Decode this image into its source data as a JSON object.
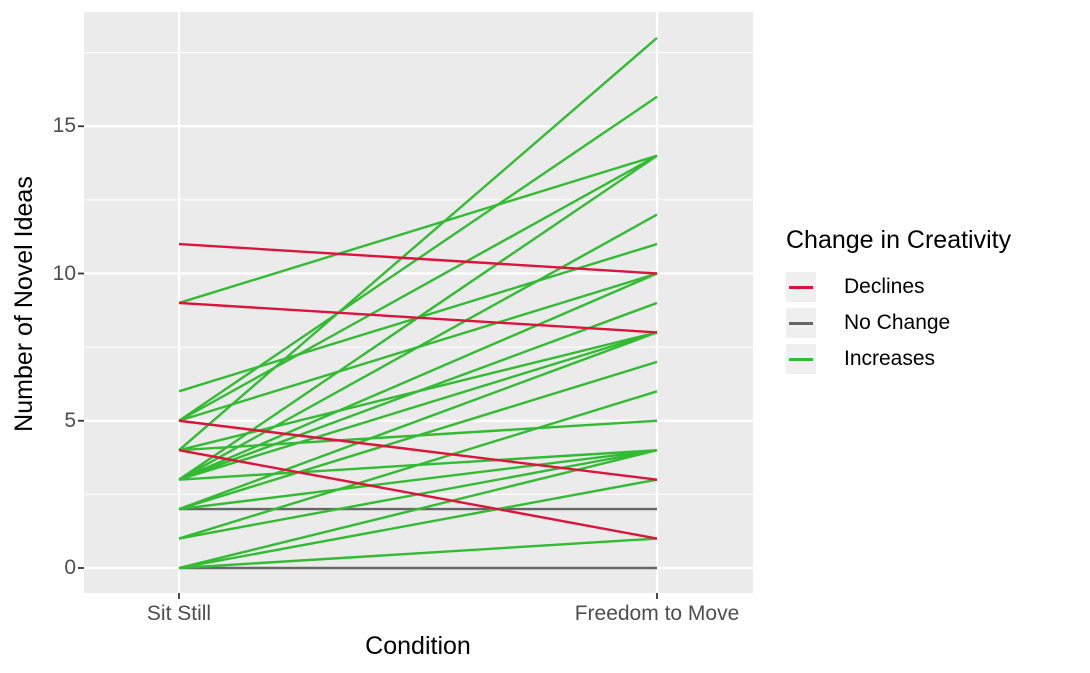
{
  "chart_data": {
    "type": "line",
    "subtype": "paired-slope-chart",
    "title": "",
    "xlabel": "Condition",
    "ylabel": "Number of Novel Ideas",
    "x_categories": [
      "Sit Still",
      "Freedom to Move"
    ],
    "y_ticks": [
      0,
      5,
      10,
      15
    ],
    "y_tick_labels": [
      "0",
      "5",
      "10",
      "15"
    ],
    "y_minor_gridlines": [
      2.5,
      7.5,
      12.5,
      17.5
    ],
    "ylim": [
      -0.85,
      18.9
    ],
    "grid": true,
    "legend": {
      "title": "Change in Creativity",
      "position": "right",
      "entries": [
        {
          "label": "Declines",
          "color": "#DC143C"
        },
        {
          "label": "No Change",
          "color": "#666666"
        },
        {
          "label": "Increases",
          "color": "#33BB33"
        }
      ]
    },
    "series": [
      {
        "name": "No Change",
        "color": "#666666",
        "pairs": [
          [
            2,
            2
          ],
          [
            0,
            0
          ]
        ]
      },
      {
        "name": "Increases",
        "color": "#33BB33",
        "pairs": [
          [
            9,
            14
          ],
          [
            6,
            11
          ],
          [
            5,
            16
          ],
          [
            5,
            14
          ],
          [
            5,
            10
          ],
          [
            4,
            18
          ],
          [
            4,
            8
          ],
          [
            4,
            5
          ],
          [
            3,
            14
          ],
          [
            3,
            12
          ],
          [
            3,
            10
          ],
          [
            3,
            9
          ],
          [
            3,
            8
          ],
          [
            3,
            4
          ],
          [
            2,
            8
          ],
          [
            2,
            7
          ],
          [
            2,
            4
          ],
          [
            1,
            6
          ],
          [
            1,
            4
          ],
          [
            0,
            4
          ],
          [
            0,
            3
          ],
          [
            0,
            1
          ]
        ]
      },
      {
        "name": "Declines",
        "color": "#DC143C",
        "pairs": [
          [
            11,
            10
          ],
          [
            9,
            8
          ],
          [
            5,
            3
          ],
          [
            4,
            1
          ]
        ]
      }
    ],
    "colors": {
      "panel_background": "#EBEBEB",
      "gridline": "#FFFFFF",
      "tick_mark": "#333333",
      "tick_text": "#4D4D4D",
      "axis_title_text": "#000000",
      "legend_key_background": "#F0F0F0"
    }
  }
}
